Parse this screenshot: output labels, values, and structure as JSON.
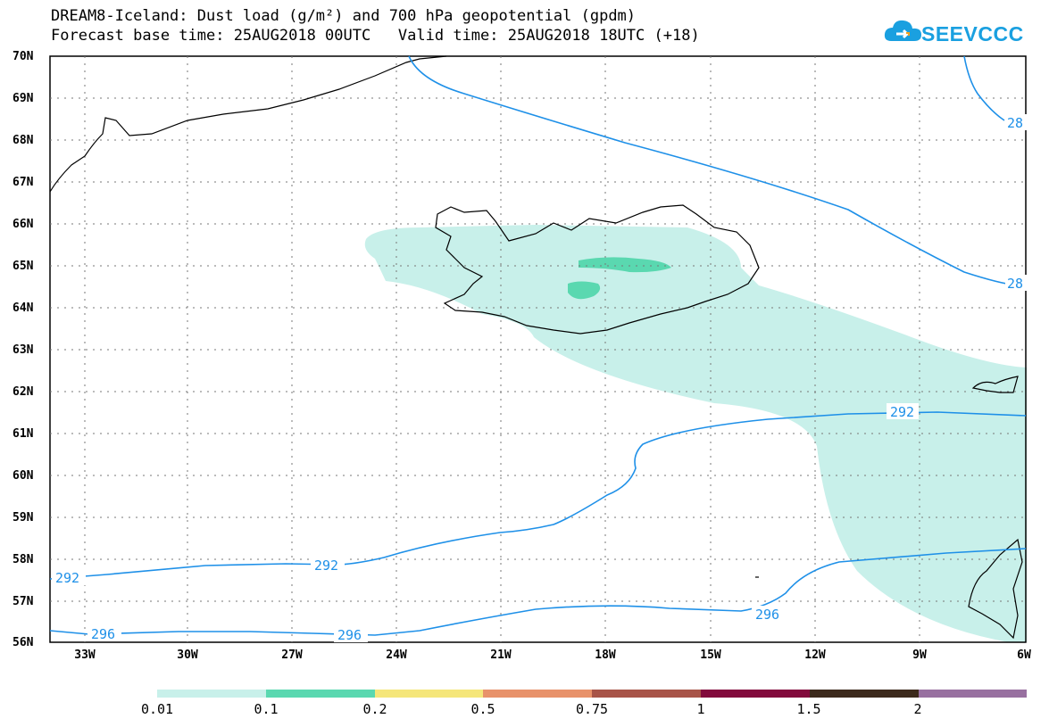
{
  "title": {
    "line1": "DREAM8-Iceland: Dust load (g/m²) and 700 hPa geopotential (gpdm)",
    "line2": "Forecast base time: 25AUG2018 00UTC   Valid time: 25AUG2018 18UTC (+18)"
  },
  "logo": {
    "text": "SEEVCCC",
    "icon": "cloud-logo-icon"
  },
  "colors": {
    "contour": "#1e90e8",
    "coastline": "#000000",
    "grid": "#777777"
  },
  "map": {
    "lat_labels": [
      "70N",
      "69N",
      "68N",
      "67N",
      "66N",
      "65N",
      "64N",
      "63N",
      "62N",
      "61N",
      "60N",
      "59N",
      "58N",
      "57N",
      "56N"
    ],
    "lon_labels": [
      "33W",
      "30W",
      "27W",
      "24W",
      "21W",
      "18W",
      "15W",
      "12W",
      "9W",
      "6W"
    ],
    "contour_labels": {
      "top_right_a": "28",
      "top_right_b": "28",
      "mid_292": "292",
      "left_292": "292",
      "center_292": "292",
      "left_296": "296",
      "center_296": "296",
      "right_296": "296"
    }
  },
  "legend": {
    "labels": [
      "0.01",
      "0.1",
      "0.2",
      "0.5",
      "0.75",
      "1",
      "1.5",
      "2"
    ],
    "colors": [
      "#c8f0ea",
      "#5ad8b0",
      "#f5e67a",
      "#e8926a",
      "#a85448",
      "#820a3c",
      "#3c2a1c",
      "#9870a0"
    ]
  }
}
